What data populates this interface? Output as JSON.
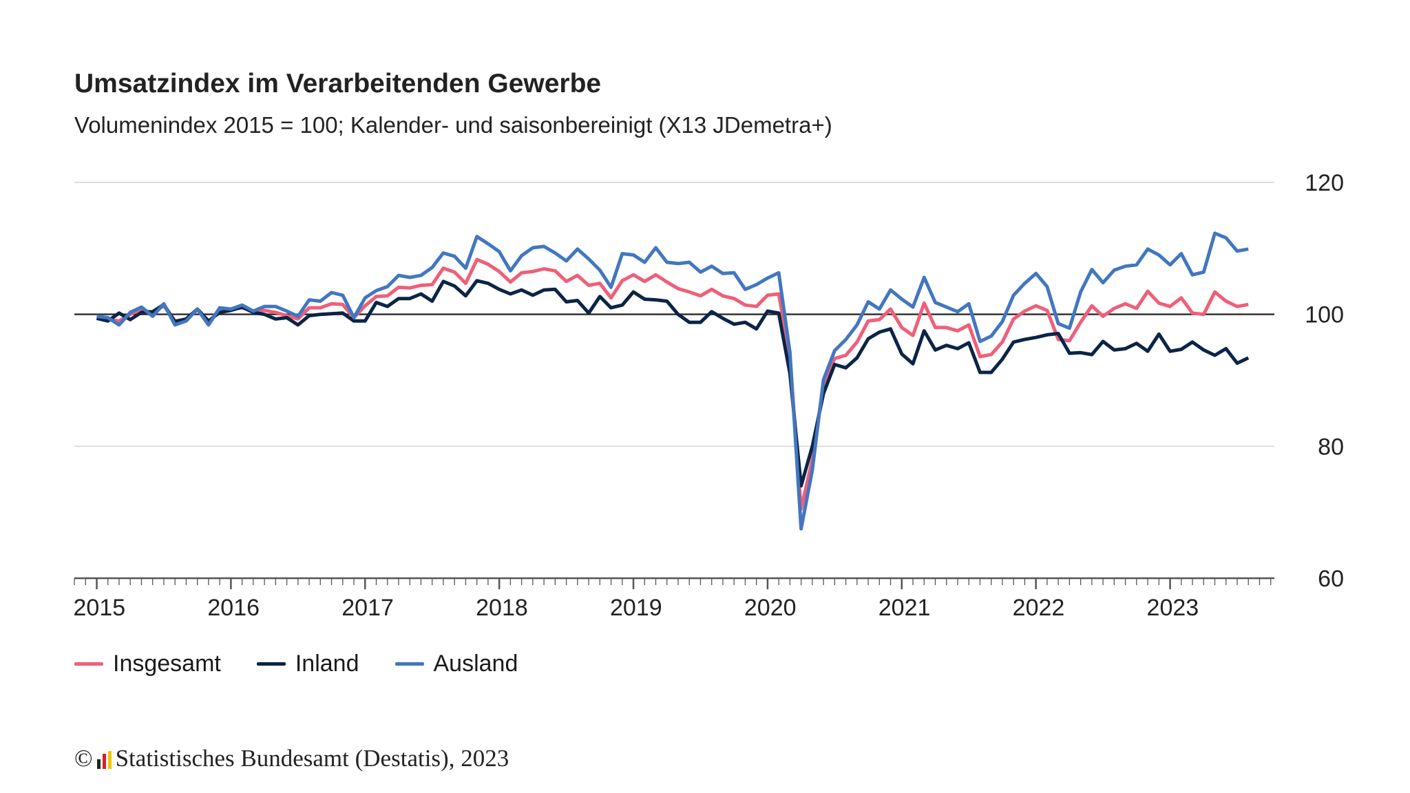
{
  "chart_data": {
    "type": "line",
    "title": "Umsatzindex im Verarbeitenden Gewerbe",
    "subtitle": "Volumenindex 2015 = 100; Kalender- und saisonbereinigt (X13 JDemetra+)",
    "x_start": "2015-01",
    "x_frequency": "monthly",
    "x_ticks": [
      "2015",
      "2016",
      "2017",
      "2018",
      "2019",
      "2020",
      "2021",
      "2022",
      "2023"
    ],
    "y_ticks": [
      60,
      80,
      100,
      120
    ],
    "ylim": [
      60,
      120
    ],
    "y_axis_side": "right",
    "reference_line": 100,
    "grid": true,
    "legend_placement": "bottom-left",
    "series": [
      {
        "name": "Insgesamt",
        "color": "#ef5f78",
        "values": [
          99.5,
          99.3,
          99.0,
          100.0,
          100.8,
          100.2,
          101.3,
          99.0,
          99.2,
          100.7,
          98.8,
          100.6,
          100.8,
          101.0,
          100.5,
          100.6,
          100.3,
          99.8,
          99.3,
          101.0,
          101.0,
          101.6,
          101.5,
          99.5,
          101.3,
          102.7,
          102.8,
          104.1,
          104.0,
          104.4,
          104.5,
          107.0,
          106.4,
          104.7,
          108.3,
          107.6,
          106.5,
          104.9,
          106.3,
          106.5,
          106.9,
          106.6,
          105.0,
          105.9,
          104.4,
          104.7,
          102.5,
          105.1,
          106.0,
          105.0,
          106.0,
          104.9,
          103.9,
          103.4,
          102.8,
          103.8,
          102.8,
          102.4,
          101.4,
          101.2,
          102.9,
          103.1,
          93.5,
          70.5,
          78.0,
          89.5,
          93.3,
          93.8,
          95.8,
          99.0,
          99.2,
          100.8,
          98.0,
          96.8,
          101.7,
          98.0,
          98.0,
          97.5,
          98.4,
          93.6,
          93.9,
          95.8,
          99.3,
          100.5,
          101.3,
          100.6,
          96.2,
          96.0,
          98.8,
          101.3,
          99.7,
          100.9,
          101.6,
          100.9,
          103.5,
          101.7,
          101.2,
          102.5,
          100.2,
          100.0,
          103.4,
          102.0,
          101.2,
          101.5
        ]
      },
      {
        "name": "Inland",
        "color": "#0b2447",
        "values": [
          99.4,
          99.0,
          100.2,
          99.2,
          100.3,
          100.4,
          101.5,
          98.9,
          99.3,
          100.8,
          99.0,
          100.3,
          100.6,
          101.1,
          100.3,
          100.0,
          99.3,
          99.5,
          98.4,
          99.8,
          100.0,
          100.1,
          100.2,
          99.0,
          99.0,
          101.8,
          101.2,
          102.4,
          102.4,
          103.1,
          102.0,
          105.0,
          104.3,
          102.8,
          105.1,
          104.7,
          103.8,
          103.1,
          103.7,
          102.9,
          103.7,
          103.8,
          101.9,
          102.1,
          100.2,
          102.7,
          101.0,
          101.4,
          103.4,
          102.3,
          102.2,
          102.0,
          100.0,
          98.8,
          98.8,
          100.4,
          99.4,
          98.5,
          98.8,
          97.8,
          100.5,
          100.2,
          91.0,
          74.0,
          80.0,
          88.0,
          92.4,
          91.9,
          93.4,
          96.3,
          97.3,
          97.8,
          94.0,
          92.5,
          97.5,
          94.6,
          95.3,
          94.8,
          95.7,
          91.2,
          91.2,
          93.2,
          95.8,
          96.2,
          96.5,
          96.9,
          97.1,
          94.1,
          94.2,
          93.9,
          95.9,
          94.6,
          94.8,
          95.6,
          94.4,
          97.0,
          94.4,
          94.7,
          95.8,
          94.6,
          93.8,
          94.8,
          92.6,
          93.4
        ]
      },
      {
        "name": "Ausland",
        "color": "#4277c0",
        "values": [
          99.7,
          99.5,
          98.4,
          100.3,
          101.1,
          99.7,
          101.6,
          98.4,
          99.0,
          100.8,
          98.4,
          101.0,
          100.8,
          101.4,
          100.5,
          101.2,
          101.2,
          100.5,
          99.7,
          102.2,
          102.0,
          103.3,
          102.9,
          99.5,
          102.5,
          103.6,
          104.2,
          105.9,
          105.6,
          105.9,
          107.1,
          109.3,
          108.8,
          107.0,
          111.8,
          110.7,
          109.5,
          106.6,
          108.9,
          110.1,
          110.3,
          109.3,
          108.1,
          109.9,
          108.4,
          106.7,
          104.1,
          109.2,
          109.0,
          107.9,
          110.1,
          107.9,
          107.7,
          107.9,
          106.4,
          107.3,
          106.2,
          106.3,
          103.8,
          104.5,
          105.5,
          106.3,
          94.2,
          67.5,
          76.4,
          90.1,
          94.5,
          96.2,
          98.4,
          101.9,
          100.8,
          103.7,
          102.3,
          101.1,
          105.6,
          101.8,
          101.1,
          100.4,
          101.6,
          95.9,
          96.7,
          98.9,
          102.9,
          104.7,
          106.2,
          104.2,
          98.6,
          97.9,
          103.4,
          106.8,
          104.8,
          106.7,
          107.3,
          107.5,
          109.9,
          109.0,
          107.5,
          109.2,
          106.0,
          106.4,
          112.3,
          111.6,
          109.6,
          109.9
        ]
      }
    ]
  },
  "footer": {
    "copyright_symbol": "©",
    "source": "Statistisches Bundesamt (Destatis), 2023",
    "logo_colors": [
      "#222222",
      "#d4202a",
      "#f2c500"
    ]
  }
}
